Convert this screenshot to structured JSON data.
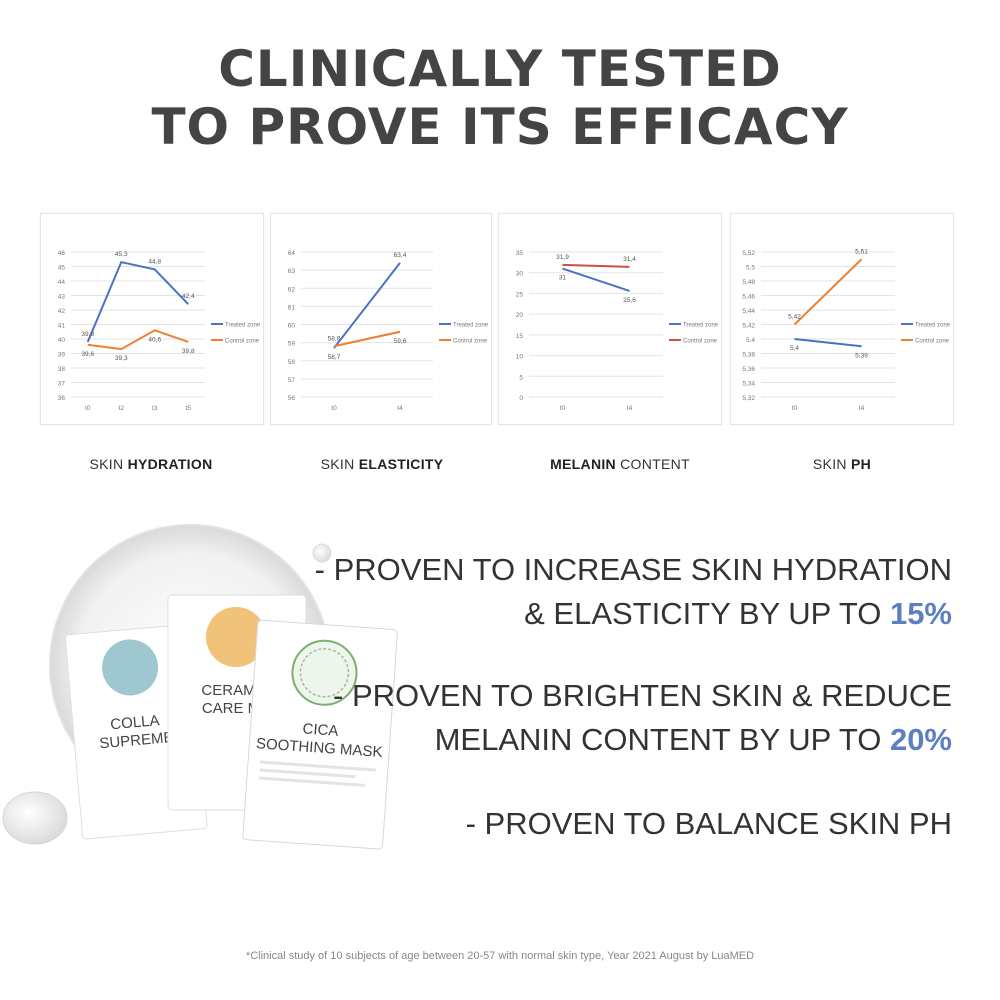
{
  "headline": {
    "line1": "CLINICALLY TESTED",
    "line2": "TO PROVE ITS EFFICACY"
  },
  "colors": {
    "treated": "#4a72c4",
    "control_orange": "#ef7f31",
    "control_red": "#c9504a",
    "accent": "#5b7fc0"
  },
  "chart_data": [
    {
      "type": "line",
      "categories": [
        "t0",
        "t2",
        "t3",
        "t5"
      ],
      "series": [
        {
          "name": "Treated zone",
          "values": [
            39.8,
            45.3,
            44.8,
            42.4
          ],
          "labels": [
            "39,8",
            "45,3",
            "44,8",
            "42,4"
          ],
          "color": "#4a72c4"
        },
        {
          "name": "Control zone",
          "values": [
            39.6,
            39.3,
            40.6,
            39.8
          ],
          "labels": [
            "39,6",
            "39,3",
            "40,6",
            "39,8"
          ],
          "color": "#ef7f31"
        }
      ],
      "yticks": [
        "36",
        "37",
        "38",
        "39",
        "40",
        "41",
        "42",
        "43",
        "44",
        "45",
        "46"
      ],
      "ylim": [
        36,
        46
      ],
      "grid": true,
      "legend": "right",
      "caption_plain": "SKIN ",
      "caption_bold": "HYDRATION",
      "caption_after": ""
    },
    {
      "type": "line",
      "categories": [
        "t0",
        "t4"
      ],
      "series": [
        {
          "name": "Treated zone",
          "values": [
            58.7,
            63.4
          ],
          "labels": [
            "58,7",
            "63,4"
          ],
          "color": "#4a72c4"
        },
        {
          "name": "Control zone",
          "values": [
            58.8,
            59.6
          ],
          "labels": [
            "58,8",
            "59,6"
          ],
          "color": "#ef7f31"
        }
      ],
      "yticks": [
        "56",
        "57",
        "58",
        "59",
        "60",
        "61",
        "62",
        "63",
        "64"
      ],
      "ylim": [
        56,
        64
      ],
      "grid": true,
      "legend": "right",
      "caption_plain": "SKIN ",
      "caption_bold": "ELASTICITY",
      "caption_after": ""
    },
    {
      "type": "line",
      "categories": [
        "t0",
        "t4"
      ],
      "series": [
        {
          "name": "Treated zone",
          "values": [
            31,
            25.6
          ],
          "labels": [
            "31",
            "25,6"
          ],
          "color": "#4a72c4"
        },
        {
          "name": "Control zone",
          "values": [
            31.9,
            31.4
          ],
          "labels": [
            "31,9",
            "31,4"
          ],
          "color": "#c9504a"
        }
      ],
      "yticks": [
        "0",
        "5",
        "10",
        "15",
        "20",
        "25",
        "30",
        "35"
      ],
      "ylim": [
        0,
        35
      ],
      "grid": true,
      "legend": "right",
      "caption_plain": "",
      "caption_bold": "MELANIN",
      "caption_after": " CONTENT"
    },
    {
      "type": "line",
      "categories": [
        "t0",
        "t4"
      ],
      "series": [
        {
          "name": "Treated zone",
          "values": [
            5.4,
            5.39
          ],
          "labels": [
            "5,4",
            "5,39"
          ],
          "color": "#4a72c4"
        },
        {
          "name": "Control zone",
          "values": [
            5.42,
            5.51
          ],
          "labels": [
            "5,42",
            "5,51"
          ],
          "color": "#ef7f31"
        }
      ],
      "yticks": [
        "5,32",
        "5,34",
        "5,36",
        "5,38",
        "5,4",
        "5,42",
        "5,44",
        "5,46",
        "5,48",
        "5,5",
        "5,52"
      ],
      "ylim": [
        5.32,
        5.52
      ],
      "grid": true,
      "legend": "right",
      "caption_plain": "SKIN ",
      "caption_bold": "PH",
      "caption_after": ""
    }
  ],
  "claims": [
    {
      "line1": "- PROVEN TO INCREASE SKIN HYDRATION",
      "line2_plain": "& ELASTICITY BY UP TO ",
      "line2_highlight": "15%"
    },
    {
      "line1": "- PROVEN TO BRIGHTEN SKIN & REDUCE",
      "line2_plain": "MELANIN CONTENT BY UP TO ",
      "line2_highlight": "20%"
    },
    {
      "line1": "- PROVEN TO BALANCE SKIN PH",
      "line2_plain": "",
      "line2_highlight": ""
    }
  ],
  "products": [
    {
      "name_line1": "COLLA",
      "name_line2": "SUPREME",
      "icon": "blue-serum-drop-icon"
    },
    {
      "name_line1": "CERAMID",
      "name_line2": "CARE MA",
      "icon": "yellow-serum-drop-icon"
    },
    {
      "name_line1": "CICA",
      "name_line2": "SOOTHING MASK",
      "icon": "green-leaf-circle-icon"
    }
  ],
  "footnote": "*Clinical study of 10 subjects of age between 20-57 with normal skin type, Year 2021 August by LuaMED"
}
